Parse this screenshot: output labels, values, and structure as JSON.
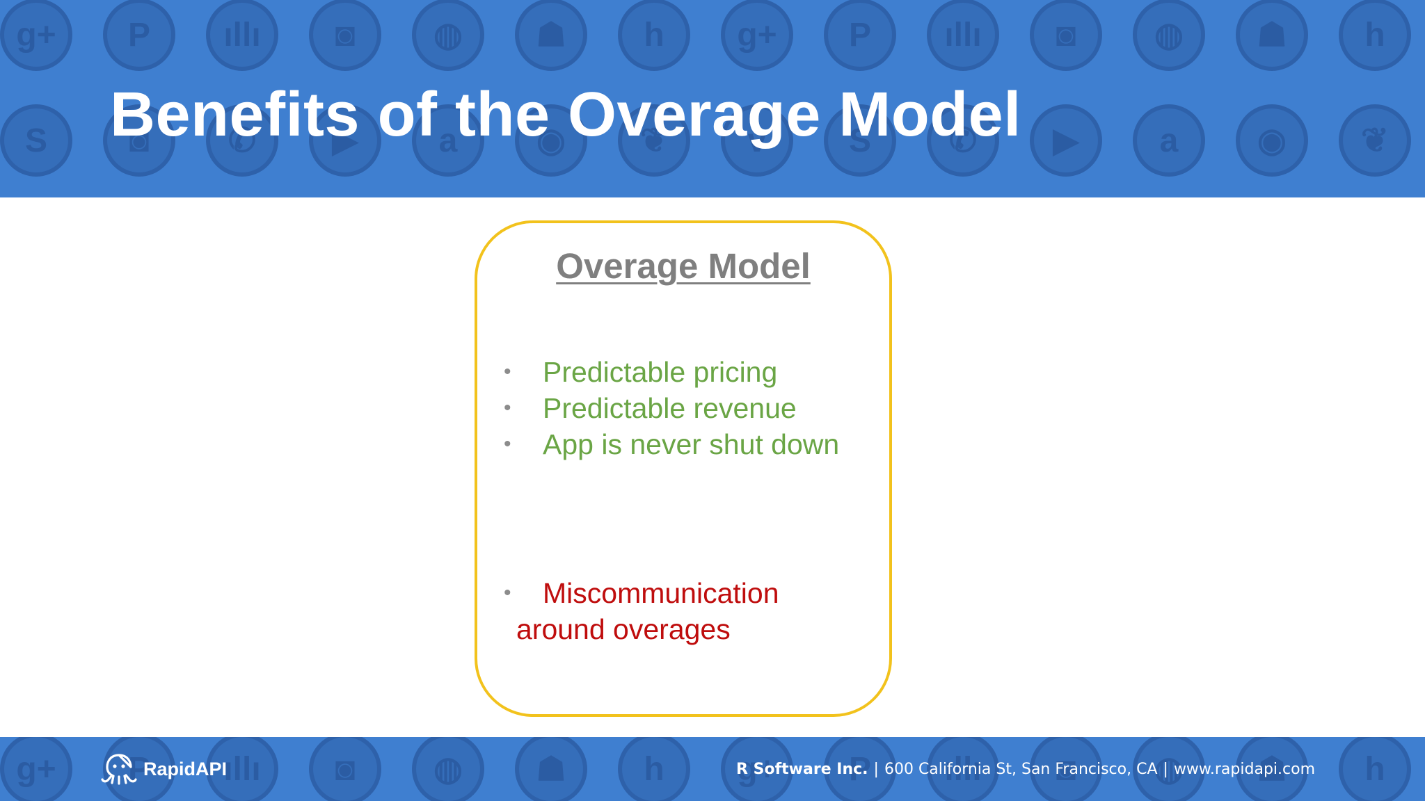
{
  "slide": {
    "title": "Benefits of the Overage Model"
  },
  "card": {
    "heading": "Overage Model",
    "pros": [
      "Predictable pricing",
      "Predictable revenue",
      "App is never shut down"
    ],
    "cons": [
      {
        "line1": "Miscommunication",
        "line2": "around overages"
      }
    ]
  },
  "footer": {
    "logo_text": "RapidAPI",
    "company": "R Software Inc.",
    "address": "600 California St, San Francisco, CA",
    "website": "www.rapidapi.com",
    "separator": "|"
  },
  "colors": {
    "banner": "#3f7fd0",
    "card_border": "#f2c21c",
    "pro_text": "#6aa545",
    "con_text": "#bf0d0d",
    "heading_text": "#7f7f7f"
  },
  "decorative_icons": [
    "google-plus-icon",
    "pinterest-icon",
    "soundcloud-icon",
    "instagram-icon",
    "android-icon",
    "hacker-news-icon",
    "skype-icon",
    "youtube-icon",
    "amazon-icon",
    "github-icon"
  ]
}
